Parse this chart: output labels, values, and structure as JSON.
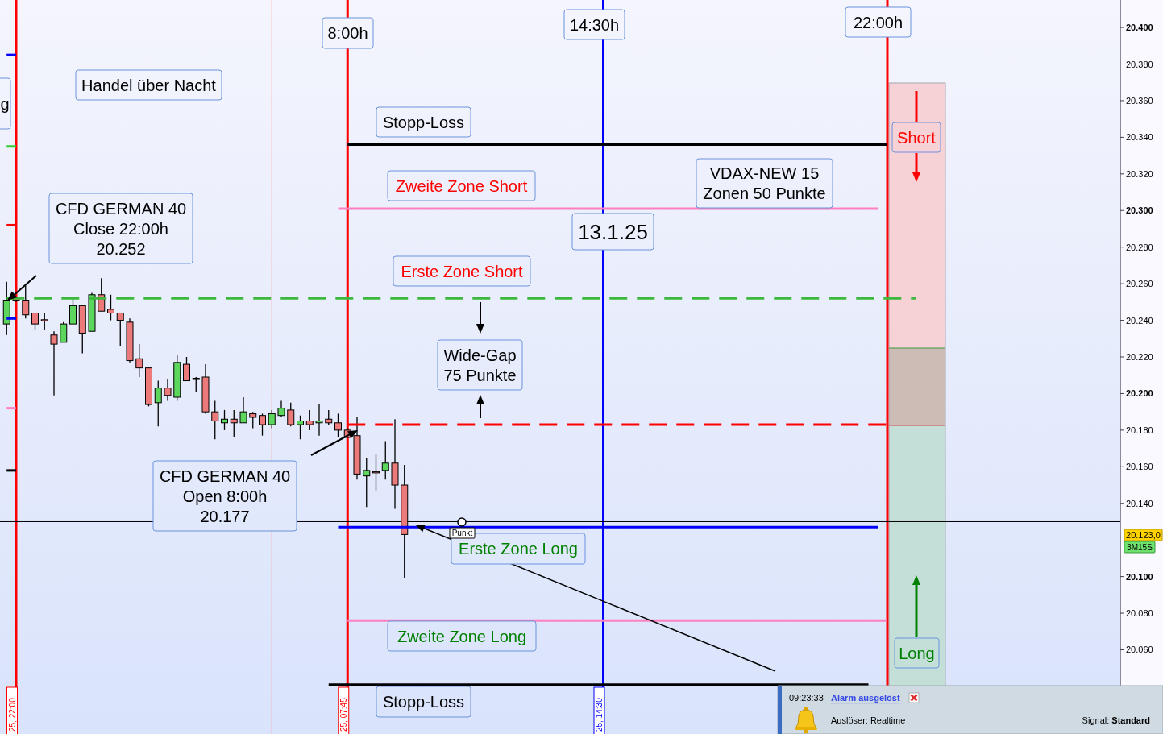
{
  "chart_data": {
    "type": "candlestick",
    "categories": [
      null,
      "25, 22:00",
      null,
      null,
      null,
      null,
      null,
      null,
      null,
      null,
      null,
      null,
      null,
      null,
      null,
      null,
      null,
      null,
      null,
      null,
      null,
      null,
      null,
      null,
      null,
      null,
      null,
      null,
      null,
      null,
      null,
      null,
      null,
      null,
      null,
      null,
      "25, 07:45",
      null,
      null,
      null,
      null,
      null,
      null,
      null,
      null,
      null,
      null,
      null,
      null,
      null,
      null,
      null,
      null,
      null,
      null,
      null,
      null,
      null,
      null,
      null,
      null,
      null,
      null,
      "25, 14:30",
      null,
      null,
      null,
      null,
      null,
      null,
      null,
      null,
      null,
      null,
      null,
      null,
      null,
      null,
      null,
      null,
      null,
      null,
      null,
      null,
      null,
      null,
      null,
      null,
      null,
      null,
      null,
      null,
      null,
      null,
      null,
      null,
      null,
      null,
      null,
      null
    ],
    "ohlc": [
      [
        20238,
        20261,
        20232,
        20251
      ],
      [
        20252,
        20253,
        20250,
        20251
      ],
      [
        20251,
        20259,
        20241,
        20243
      ],
      [
        20244,
        20244,
        20235,
        20238
      ],
      [
        20240,
        20244,
        20235,
        20240
      ],
      [
        20232,
        20234,
        20199,
        20227
      ],
      [
        20228,
        20239,
        20228,
        20238
      ],
      [
        20238,
        20252,
        20238,
        20248
      ],
      [
        20248,
        20248,
        20222,
        20233
      ],
      [
        20234,
        20255,
        20234,
        20254
      ],
      [
        20254,
        20263,
        20245,
        20245
      ],
      [
        20246,
        20254,
        20240,
        20244
      ],
      [
        20244,
        20244,
        20226,
        20240
      ],
      [
        20239,
        20241,
        20217,
        20218
      ],
      [
        20219,
        20227,
        20209,
        20214
      ],
      [
        20214,
        20214,
        20193,
        20194
      ],
      [
        20195,
        20207,
        20182,
        20203
      ],
      [
        20203,
        20208,
        20196,
        20199
      ],
      [
        20198,
        20221,
        20196,
        20217
      ],
      [
        20216,
        20220,
        20207,
        20207
      ],
      [
        20208,
        20209,
        20201,
        20208
      ],
      [
        20209,
        20216,
        20189,
        20190
      ],
      [
        20190,
        20196,
        20175,
        20185
      ],
      [
        20184,
        20191,
        20180,
        20186
      ],
      [
        20186,
        20191,
        20176,
        20184
      ],
      [
        20184,
        20198,
        20184,
        20190
      ],
      [
        20189,
        20190,
        20181,
        20187
      ],
      [
        20188,
        20189,
        20177,
        20183
      ],
      [
        20183,
        20191,
        20181,
        20189
      ],
      [
        20188,
        20196,
        20187,
        20192
      ],
      [
        20191,
        20195,
        20182,
        20183
      ],
      [
        20183,
        20188,
        20175,
        20185
      ],
      [
        20185,
        20191,
        20180,
        20183
      ],
      [
        20184,
        20194,
        20177,
        20185
      ],
      [
        20186,
        20191,
        20183,
        20184
      ],
      [
        20184,
        20189,
        20176,
        20180
      ],
      [
        20180,
        20181,
        20176,
        20176
      ],
      [
        20177,
        20187,
        20153,
        20156
      ],
      [
        20155,
        20165,
        20138,
        20158
      ],
      [
        20157,
        20167,
        20147,
        20157
      ],
      [
        20158,
        20174,
        20153,
        20162
      ],
      [
        20162,
        20186,
        20137,
        20150
      ],
      [
        20150,
        20161,
        20099,
        20123
      ],
      null,
      null,
      null,
      null,
      null,
      null,
      null,
      null,
      null,
      null,
      null,
      null,
      null,
      null,
      null,
      null,
      null,
      null,
      null,
      null,
      null,
      null,
      null,
      null,
      null,
      null,
      null,
      null,
      null,
      null,
      null,
      null,
      null,
      null,
      null,
      null,
      null,
      null,
      null,
      null,
      null,
      null,
      null,
      null,
      null,
      null,
      null,
      null,
      null,
      null,
      null,
      null,
      null,
      null,
      null,
      null,
      null
    ],
    "colors": [
      "#5cd65c",
      "#ec7a7a",
      "#ec7a7a",
      "#ec7a7a",
      "#ec7a7a",
      "#ec7a7a",
      "#5cd65c",
      "#5cd65c",
      "#ec7a7a",
      "#5cd65c",
      "#ec7a7a",
      "#ec7a7a",
      "#ec7a7a",
      "#ec7a7a",
      "#ec7a7a",
      "#ec7a7a",
      "#5cd65c",
      "#ec7a7a",
      "#5cd65c",
      "#ec7a7a",
      "#ec7a7a",
      "#ec7a7a",
      "#ec7a7a",
      "#5cd65c",
      "#ec7a7a",
      "#5cd65c",
      "#ec7a7a",
      "#ec7a7a",
      "#5cd65c",
      "#5cd65c",
      "#ec7a7a",
      "#5cd65c",
      "#ec7a7a",
      "#5cd65c",
      "#ec7a7a",
      "#ec7a7a",
      "#ec7a7a",
      "#ec7a7a",
      "#5cd65c",
      "#ec7a7a",
      "#5cd65c",
      "#ec7a7a",
      "#ec7a7a",
      null,
      null,
      null,
      null,
      null,
      null,
      null,
      null,
      null,
      null,
      null,
      null,
      null,
      null,
      null,
      null,
      null,
      null,
      null,
      null,
      null,
      null,
      null,
      null,
      null,
      null,
      null,
      null,
      null,
      null,
      null,
      null,
      null,
      null,
      null,
      null,
      null,
      null,
      null,
      null,
      null,
      null,
      null,
      null,
      null,
      null,
      null,
      null,
      null,
      null,
      null,
      null,
      null,
      null,
      null,
      null,
      null
    ],
    "ylim": [
      20014,
      20415
    ],
    "yticks": [
      {
        "value": 20060,
        "label": "20.060"
      },
      {
        "value": 20080,
        "label": "20.080"
      },
      {
        "value": 20100,
        "label": "20.100"
      },
      {
        "value": 20140,
        "label": "20.140"
      },
      {
        "value": 20160,
        "label": "20.160"
      },
      {
        "value": 20180,
        "label": "20.180"
      },
      {
        "value": 20200,
        "label": "20.200"
      },
      {
        "value": 20220,
        "label": "20.220"
      },
      {
        "value": 20240,
        "label": "20.240"
      },
      {
        "value": 20260,
        "label": "20.260"
      },
      {
        "value": 20280,
        "label": "20.280"
      },
      {
        "value": 20300,
        "label": "20.300"
      },
      {
        "value": 20320,
        "label": "20.320"
      },
      {
        "value": 20340,
        "label": "20.340"
      },
      {
        "value": 20360,
        "label": "20.360"
      },
      {
        "value": 20380,
        "label": "20.380"
      },
      {
        "value": 20400,
        "label": "20.400"
      }
    ],
    "series": [
      {
        "type": "line",
        "values": [
          20385,
          20385,
          null,
          null,
          null,
          null,
          null,
          null,
          null,
          null,
          null,
          null,
          null,
          null,
          null,
          null,
          null,
          null,
          null,
          null,
          null,
          null,
          null,
          null,
          null,
          null,
          null,
          null,
          null,
          null,
          null,
          null,
          null,
          null,
          null,
          null,
          null,
          null,
          null,
          null,
          null,
          null,
          null,
          null,
          null,
          null,
          null,
          null,
          null,
          null,
          null,
          null,
          null,
          null,
          null,
          null,
          null,
          null,
          null,
          null,
          null,
          null,
          null,
          null,
          null,
          null,
          null,
          null,
          null,
          null,
          null,
          null,
          null,
          null,
          null,
          null,
          null,
          null,
          null,
          null,
          null,
          null,
          null,
          null,
          null,
          null,
          null,
          null,
          null,
          null,
          null,
          null,
          null,
          null,
          null,
          null,
          null,
          null,
          null,
          null
        ],
        "color": "#0000ff"
      },
      {
        "type": "line",
        "values": [
          20335,
          20335,
          null,
          null,
          null,
          null,
          null,
          null,
          null,
          null,
          null,
          null,
          null,
          null,
          null,
          null,
          null,
          null,
          null,
          null,
          null,
          null,
          null,
          null,
          null,
          null,
          null,
          null,
          null,
          null,
          null,
          null,
          null,
          null,
          null,
          null,
          null,
          null,
          null,
          null,
          null,
          null,
          null,
          null,
          null,
          null,
          null,
          null,
          null,
          null,
          null,
          null,
          null,
          null,
          null,
          null,
          null,
          null,
          null,
          null,
          null,
          null,
          null,
          null,
          null,
          null,
          null,
          null,
          null,
          null,
          null,
          null,
          null,
          null,
          null,
          null,
          null,
          null,
          null,
          null,
          null,
          null,
          null,
          null,
          null,
          null,
          null,
          null,
          null,
          null,
          null,
          null,
          null,
          null,
          null,
          null,
          null,
          null,
          null,
          null
        ],
        "color": "#33cc33"
      },
      {
        "type": "line",
        "values": [
          20292,
          20292,
          null,
          null,
          null,
          null,
          null,
          null,
          null,
          null,
          null,
          null,
          null,
          null,
          null,
          null,
          null,
          null,
          null,
          null,
          null,
          null,
          null,
          null,
          null,
          null,
          null,
          null,
          null,
          null,
          null,
          null,
          null,
          null,
          null,
          null,
          null,
          null,
          null,
          null,
          null,
          null,
          null,
          null,
          null,
          null,
          null,
          null,
          null,
          null,
          null,
          null,
          null,
          null,
          null,
          null,
          null,
          null,
          null,
          null,
          null,
          null,
          null,
          null,
          null,
          null,
          null,
          null,
          null,
          null,
          null,
          null,
          null,
          null,
          null,
          null,
          null,
          null,
          null,
          null,
          null,
          null,
          null,
          null,
          null,
          null,
          null,
          null,
          null,
          null,
          null,
          null,
          null,
          null,
          null,
          null,
          null,
          null,
          null,
          null
        ],
        "color": "#ff0000"
      },
      {
        "type": "line",
        "values": [
          20241,
          20241,
          null,
          null,
          null,
          null,
          null,
          null,
          null,
          null,
          null,
          null,
          null,
          null,
          null,
          null,
          null,
          null,
          null,
          null,
          null,
          null,
          null,
          null,
          null,
          null,
          null,
          null,
          null,
          null,
          null,
          null,
          null,
          null,
          null,
          null,
          null,
          null,
          null,
          null,
          null,
          null,
          null,
          null,
          null,
          null,
          null,
          null,
          null,
          null,
          null,
          null,
          null,
          null,
          null,
          null,
          null,
          null,
          null,
          null,
          null,
          null,
          null,
          null,
          null,
          null,
          null,
          null,
          null,
          null,
          null,
          null,
          null,
          null,
          null,
          null,
          null,
          null,
          null,
          null,
          null,
          null,
          null,
          null,
          null,
          null,
          null,
          null,
          null,
          null,
          null,
          null,
          null,
          null,
          null,
          null,
          null,
          null,
          null,
          null
        ],
        "color": "#0000ff"
      },
      {
        "type": "line",
        "values": [
          20192,
          20192,
          null,
          null,
          null,
          null,
          null,
          null,
          null,
          null,
          null,
          null,
          null,
          null,
          null,
          null,
          null,
          null,
          null,
          null,
          null,
          null,
          null,
          null,
          null,
          null,
          null,
          null,
          null,
          null,
          null,
          null,
          null,
          null,
          null,
          null,
          null,
          null,
          null,
          null,
          null,
          null,
          null,
          null,
          null,
          null,
          null,
          null,
          null,
          null,
          null,
          null,
          null,
          null,
          null,
          null,
          null,
          null,
          null,
          null,
          null,
          null,
          null,
          null,
          null,
          null,
          null,
          null,
          null,
          null,
          null,
          null,
          null,
          null,
          null,
          null,
          null,
          null,
          null,
          null,
          null,
          null,
          null,
          null,
          null,
          null,
          null,
          null,
          null,
          null,
          null,
          null,
          null,
          null,
          null,
          null,
          null,
          null,
          null,
          null
        ],
        "color": "#ff80c0"
      },
      {
        "type": "line",
        "values": [
          20158,
          20158,
          null,
          null,
          null,
          null,
          null,
          null,
          null,
          null,
          null,
          null,
          null,
          null,
          null,
          null,
          null,
          null,
          null,
          null,
          null,
          null,
          null,
          null,
          null,
          null,
          null,
          null,
          null,
          null,
          null,
          null,
          null,
          null,
          null,
          null,
          null,
          null,
          null,
          null,
          null,
          null,
          null,
          null,
          null,
          null,
          null,
          null,
          null,
          null,
          null,
          null,
          null,
          null,
          null,
          null,
          null,
          null,
          null,
          null,
          null,
          null,
          null,
          null,
          null,
          null,
          null,
          null,
          null,
          null,
          null,
          null,
          null,
          null,
          null,
          null,
          null,
          null,
          null,
          null,
          null,
          null,
          null,
          null,
          null,
          null,
          null,
          null,
          null,
          null,
          null,
          null,
          null,
          null,
          null,
          null,
          null,
          null,
          null,
          null
        ],
        "color": "#000000"
      },
      {
        "type": "line",
        "values": [
          20252,
          20252,
          20252,
          20252,
          20252,
          20252,
          20252,
          20252,
          20252,
          20252,
          20252,
          20252,
          20252,
          20252,
          20252,
          20252,
          20252,
          20252,
          20252,
          20252,
          20252,
          20252,
          20252,
          20252,
          20252,
          20252,
          20252,
          20252,
          20252,
          20252,
          20252,
          20252,
          20252,
          20252,
          20252,
          20252,
          20252,
          20252,
          20252,
          20252,
          20252,
          20252,
          20252,
          20252,
          20252,
          20252,
          20252,
          20252,
          20252,
          20252,
          20252,
          20252,
          20252,
          20252,
          20252,
          20252,
          20252,
          20252,
          20252,
          20252,
          20252,
          20252,
          20252,
          20252,
          20252,
          20252,
          20252,
          20252,
          20252,
          20252,
          20252,
          20252,
          20252,
          20252,
          20252,
          20252,
          20252,
          20252,
          20252,
          20252,
          20252,
          20252,
          20252,
          20252,
          20252,
          20252,
          20252,
          20252,
          20252,
          20252,
          20252,
          20252,
          20252,
          20252,
          20252,
          20252,
          20252,
          null,
          null,
          null
        ],
        "color": "#3cb83c",
        "line_style": "dashed"
      },
      {
        "type": "line",
        "color": "#ff0000",
        "line_style": "dashed",
        "values": [
          null,
          null,
          null,
          null,
          null,
          null,
          null,
          null,
          null,
          null,
          null,
          null,
          null,
          null,
          null,
          null,
          null,
          null,
          null,
          null,
          null,
          null,
          null,
          null,
          null,
          null,
          null,
          null,
          null,
          null,
          null,
          null,
          null,
          null,
          null,
          null,
          20183,
          20183,
          20183,
          20183,
          20183,
          20183,
          20183,
          20183,
          20183,
          20183,
          20183,
          20183,
          20183,
          20183,
          20183,
          20183,
          20183,
          20183,
          20183,
          20183,
          20183,
          20183,
          20183,
          20183,
          20183,
          20183,
          20183,
          20183,
          20183,
          20183,
          20183,
          20183,
          20183,
          20183,
          20183,
          20183,
          20183,
          20183,
          20183,
          20183,
          20183,
          20183,
          20183,
          20183,
          20183,
          20183,
          20183,
          20183,
          20183,
          20183,
          20183,
          20183,
          20183,
          20183,
          20183,
          20183,
          20183,
          20183,
          null,
          null,
          null,
          null,
          null,
          null
        ]
      },
      {
        "type": "line",
        "color": "#000000",
        "values": [
          null,
          null,
          null,
          null,
          null,
          null,
          null,
          null,
          null,
          null,
          null,
          null,
          null,
          null,
          null,
          null,
          null,
          null,
          null,
          null,
          null,
          null,
          null,
          null,
          null,
          null,
          null,
          null,
          null,
          null,
          null,
          null,
          null,
          null,
          null,
          null,
          20336,
          20336,
          20336,
          20336,
          20336,
          20336,
          20336,
          20336,
          20336,
          20336,
          20336,
          20336,
          20336,
          20336,
          20336,
          20336,
          20336,
          20336,
          20336,
          20336,
          20336,
          20336,
          20336,
          20336,
          20336,
          20336,
          20336,
          20336,
          20336,
          20336,
          20336,
          20336,
          20336,
          20336,
          20336,
          20336,
          20336,
          20336,
          20336,
          20336,
          20336,
          20336,
          20336,
          20336,
          20336,
          20336,
          20336,
          20336,
          20336,
          20336,
          20336,
          20336,
          20336,
          20336,
          20336,
          20336,
          20336,
          20336,
          null,
          null,
          null,
          null,
          null,
          null
        ]
      },
      {
        "type": "line",
        "color": "#ff80c0",
        "values": [
          null,
          null,
          null,
          null,
          null,
          null,
          null,
          null,
          null,
          null,
          null,
          null,
          null,
          null,
          null,
          null,
          null,
          null,
          null,
          null,
          null,
          null,
          null,
          null,
          null,
          null,
          null,
          null,
          null,
          null,
          null,
          null,
          null,
          null,
          null,
          20301,
          20301,
          20301,
          20301,
          20301,
          20301,
          20301,
          20301,
          20301,
          20301,
          20301,
          20301,
          20301,
          20301,
          20301,
          20301,
          20301,
          20301,
          20301,
          20301,
          20301,
          20301,
          20301,
          20301,
          20301,
          20301,
          20301,
          20301,
          20301,
          20301,
          20301,
          20301,
          20301,
          20301,
          20301,
          20301,
          20301,
          20301,
          20301,
          20301,
          20301,
          20301,
          20301,
          20301,
          20301,
          20301,
          20301,
          20301,
          20301,
          20301,
          20301,
          20301,
          20301,
          20301,
          20301,
          20301,
          20301,
          20301,
          null,
          null,
          null,
          null,
          null,
          null,
          null
        ]
      },
      {
        "type": "line",
        "color": "#0000ff",
        "values": [
          null,
          null,
          null,
          null,
          null,
          null,
          null,
          null,
          null,
          null,
          null,
          null,
          null,
          null,
          null,
          null,
          null,
          null,
          null,
          null,
          null,
          null,
          null,
          null,
          null,
          null,
          null,
          null,
          null,
          null,
          null,
          null,
          null,
          null,
          null,
          20127,
          20127,
          20127,
          20127,
          20127,
          20127,
          20127,
          20127,
          20127,
          20127,
          20127,
          20127,
          20127,
          20127,
          20127,
          20127,
          20127,
          20127,
          20127,
          20127,
          20127,
          20127,
          20127,
          20127,
          20127,
          20127,
          20127,
          20127,
          20127,
          20127,
          20127,
          20127,
          20127,
          20127,
          20127,
          20127,
          20127,
          20127,
          20127,
          20127,
          20127,
          20127,
          20127,
          20127,
          20127,
          20127,
          20127,
          20127,
          20127,
          20127,
          20127,
          20127,
          20127,
          20127,
          20127,
          20127,
          20127,
          20127,
          null,
          null,
          null,
          null,
          null,
          null,
          null
        ]
      },
      {
        "type": "line",
        "color": "#ff80c0",
        "values": [
          null,
          null,
          null,
          null,
          null,
          null,
          null,
          null,
          null,
          null,
          null,
          null,
          null,
          null,
          null,
          null,
          null,
          null,
          null,
          null,
          null,
          null,
          null,
          null,
          null,
          null,
          null,
          null,
          null,
          null,
          null,
          null,
          null,
          null,
          null,
          null,
          20076,
          20076,
          20076,
          20076,
          20076,
          20076,
          20076,
          20076,
          20076,
          20076,
          20076,
          20076,
          20076,
          20076,
          20076,
          20076,
          20076,
          20076,
          20076,
          20076,
          20076,
          20076,
          20076,
          20076,
          20076,
          20076,
          20076,
          20076,
          20076,
          20076,
          20076,
          20076,
          20076,
          20076,
          20076,
          20076,
          20076,
          20076,
          20076,
          20076,
          20076,
          20076,
          20076,
          20076,
          20076,
          20076,
          20076,
          20076,
          20076,
          20076,
          20076,
          20076,
          20076,
          20076,
          20076,
          20076,
          20076,
          20076,
          null,
          null,
          null,
          null,
          null,
          null
        ]
      },
      {
        "type": "line",
        "color": "#000000",
        "values": [
          null,
          null,
          null,
          null,
          null,
          null,
          null,
          null,
          null,
          null,
          null,
          null,
          null,
          null,
          null,
          null,
          null,
          null,
          null,
          null,
          null,
          null,
          null,
          null,
          null,
          null,
          null,
          null,
          null,
          null,
          null,
          null,
          null,
          null,
          20041,
          20041,
          20041,
          20041,
          20041,
          20041,
          20041,
          20041,
          20041,
          20041,
          20041,
          20041,
          20041,
          20041,
          20041,
          20041,
          20041,
          20041,
          20041,
          20041,
          20041,
          20041,
          20041,
          20041,
          20041,
          20041,
          20041,
          20041,
          20041,
          20041,
          20041,
          20041,
          20041,
          20041,
          20041,
          20041,
          20041,
          20041,
          20041,
          20041,
          20041,
          20041,
          20041,
          20041,
          20041,
          20041,
          20041,
          20041,
          20041,
          20041,
          20041,
          20041,
          20041,
          20041,
          20041,
          20041,
          20041,
          20041,
          null,
          null,
          null,
          null,
          null,
          null,
          null,
          null
        ]
      }
    ],
    "ref_lines": [
      {
        "axis": "x",
        "value": "25, 22:00",
        "color": "#ff0000"
      },
      {
        "axis": "x",
        "value": "25, 07:45",
        "color": "#ff0000"
      },
      {
        "axis": "x",
        "value": "25, 14:30",
        "color": "#0000ff"
      },
      {
        "axis": "y",
        "value": 20130,
        "color": "#000000"
      }
    ],
    "annotations": [
      "8:00h",
      "14:30h",
      "22:00h",
      "Handel über Nacht",
      "CFD GERMAN 40\nClose 22:00h\n20.252",
      "CFD GERMAN 40\nOpen 8:00h\n20.177",
      "Stopp-Loss",
      "Zweite Zone Short",
      "Erste Zone Short",
      "Wide-Gap\n75 Punkte",
      "13.1.25",
      "VDAX-NEW 15\nZonen 50 Punkte",
      "Erste Zone Long",
      "Zweite Zone Long",
      "Stopp-Loss",
      "Short",
      "Long",
      "g",
      "Punkt",
      "20.123,0",
      "3M15S",
      "09:23:33",
      "Alarm ausgelöst",
      "Auslöser: Realtime",
      "Signal: Standard"
    ]
  }
}
